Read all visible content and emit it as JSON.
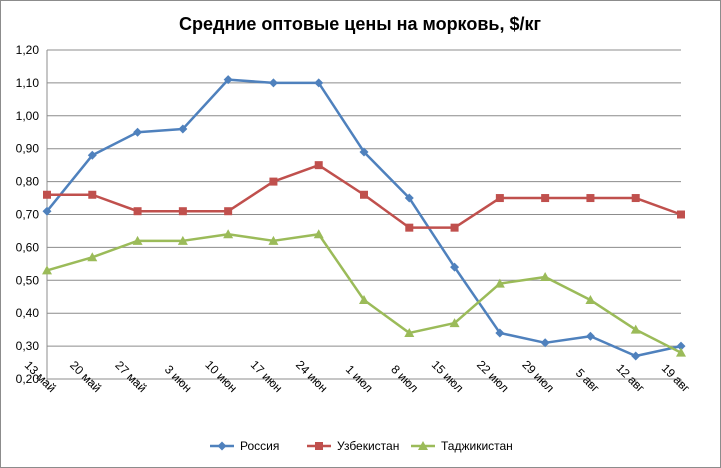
{
  "chart_data": {
    "type": "line",
    "title": "Средние оптовые цены на морковь, $/кг",
    "categories": [
      "13 май",
      "20 май",
      "27 май",
      "3 июн",
      "10 июн",
      "17 июн",
      "24 июн",
      "1 июл",
      "8 июл",
      "15 июл",
      "22 июл",
      "29 июл",
      "5 авг",
      "12 авг",
      "19 авг"
    ],
    "y_ticks": [
      "0,20",
      "0,30",
      "0,40",
      "0,50",
      "0,60",
      "0,70",
      "0,80",
      "0,90",
      "1,00",
      "1,10",
      "1,20"
    ],
    "ylim": [
      0.2,
      1.2
    ],
    "grid": "horizontal",
    "legend_position": "bottom",
    "series": [
      {
        "name": "Россия",
        "color": "#4f81bd",
        "marker": "diamond",
        "values": [
          0.71,
          0.88,
          0.95,
          0.96,
          1.11,
          1.1,
          1.1,
          0.89,
          0.75,
          0.54,
          0.34,
          0.31,
          0.33,
          0.27,
          0.3
        ]
      },
      {
        "name": "Узбекистан",
        "color": "#c0504d",
        "marker": "square",
        "values": [
          0.76,
          0.76,
          0.71,
          0.71,
          0.71,
          0.8,
          0.85,
          0.76,
          0.66,
          0.66,
          0.75,
          0.75,
          0.75,
          0.75,
          0.7
        ]
      },
      {
        "name": "Таджикистан",
        "color": "#9bbb59",
        "marker": "triangle",
        "values": [
          0.53,
          0.57,
          0.62,
          0.62,
          0.64,
          0.62,
          0.64,
          0.44,
          0.34,
          0.37,
          0.49,
          0.51,
          0.44,
          0.35,
          0.28
        ]
      }
    ]
  }
}
